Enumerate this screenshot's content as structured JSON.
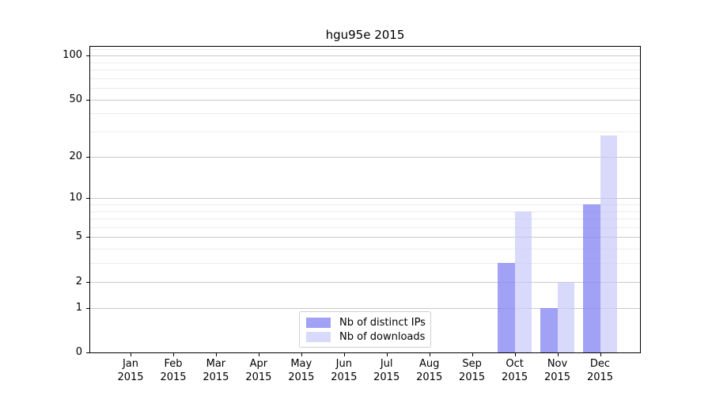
{
  "title": "hgu95e 2015",
  "chart_data": {
    "type": "bar",
    "title": "hgu95e 2015",
    "scale": "log1p",
    "categories": [
      "Jan",
      "Feb",
      "Mar",
      "Apr",
      "May",
      "Jun",
      "Jul",
      "Aug",
      "Sep",
      "Oct",
      "Nov",
      "Dec"
    ],
    "category_sublabel": "2015",
    "series": [
      {
        "name": "Nb of distinct IPs",
        "color": "rgba(138,138,242,0.8)",
        "hex_on_white": "#a1a1f4",
        "values": [
          0,
          0,
          0,
          0,
          0,
          0,
          0,
          0,
          0,
          3,
          1,
          9
        ]
      },
      {
        "name": "Nb of downloads",
        "color": "rgba(201,201,249,0.7)",
        "hex_on_white": "#d8d8fb",
        "values": [
          0,
          0,
          0,
          0,
          0,
          0,
          0,
          0,
          0,
          8,
          2,
          28
        ]
      }
    ],
    "yticks": [
      0,
      1,
      2,
      5,
      10,
      20,
      50,
      100
    ],
    "minor_gridlines": [
      3,
      4,
      6,
      7,
      8,
      9,
      30,
      40,
      60,
      70,
      80,
      90,
      110
    ],
    "ylim": [
      0,
      115
    ],
    "xlabel": "",
    "ylabel": "",
    "grid": true,
    "legend_position": "lower center"
  }
}
